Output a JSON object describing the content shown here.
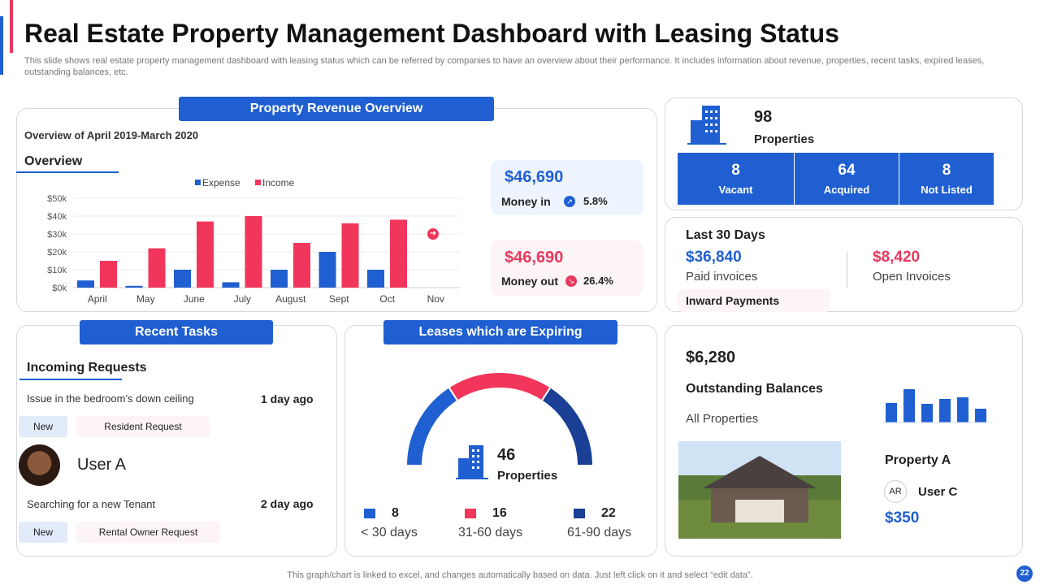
{
  "title": "Real Estate Property Management Dashboard with Leasing Status",
  "subtitle": "This slide shows real estate property management dashboard with leasing status which can be referred by companies to have an overview  about their performance. It includes information about revenue, properties, recent tasks, expired leases, outstanding balances, etc.",
  "revenue": {
    "header": "Property Revenue Overview",
    "period": "Overview of April 2019-March 2020",
    "overview": "Overview",
    "money_in": {
      "amount": "$46,690",
      "label": "Money in",
      "pct": "5.8%"
    },
    "money_out": {
      "amount": "$46,690",
      "label": "Money out",
      "pct": "26.4%"
    }
  },
  "chart_data": {
    "type": "bar",
    "categories": [
      "April",
      "May",
      "June",
      "July",
      "August",
      "Sept",
      "Oct",
      "Nov"
    ],
    "series": [
      {
        "name": "Expense",
        "color": "#1f5fd1",
        "values": [
          4,
          1,
          10,
          3,
          10,
          20,
          10,
          null
        ]
      },
      {
        "name": "Income",
        "color": "#f2355b",
        "values": [
          15,
          22,
          37,
          40,
          25,
          36,
          38,
          null
        ]
      }
    ],
    "yticks": [
      "$0k",
      "$10k",
      "$20k",
      "$30k",
      "$40k",
      "$50k"
    ],
    "ylim": [
      0,
      50
    ],
    "legend": "top-center",
    "unit": "$k"
  },
  "properties": {
    "count": "98",
    "label": "Properties",
    "stats": [
      {
        "value": "8",
        "label": "Vacant"
      },
      {
        "value": "64",
        "label": "Acquired"
      },
      {
        "value": "8",
        "label": "Not Listed"
      }
    ]
  },
  "last30": {
    "title": "Last 30 Days",
    "paid": {
      "amount": "$36,840",
      "label": "Paid invoices"
    },
    "open": {
      "amount": "$8,420",
      "label": "Open Invoices"
    },
    "inward": "Inward Payments"
  },
  "tasks": {
    "header": "Recent Tasks",
    "sub": "Incoming Requests",
    "items": [
      {
        "text": "Issue in the bedroom’s  down ceiling",
        "time": "1 day ago",
        "status": "New",
        "type": "Resident Request"
      },
      {
        "text": "Searching for a new Tenant",
        "time": "2 day ago",
        "status": "New",
        "type": "Rental Owner Request"
      }
    ],
    "user": "User A"
  },
  "leases": {
    "header": "Leases which are Expiring",
    "total": "46",
    "label": "Properties",
    "groups": [
      {
        "value": "8",
        "label": "< 30 days",
        "color": "#1f5fd1"
      },
      {
        "value": "16",
        "label": "31-60 days",
        "color": "#f2355b"
      },
      {
        "value": "22",
        "label": "61-90 days",
        "color": "#1a3f95"
      }
    ]
  },
  "balances": {
    "amount": "$6,280",
    "label": "Outstanding Balances",
    "scope": "All Properties",
    "property": "Property A",
    "user_initials": "AR",
    "user": "User C",
    "user_amount": "$350",
    "mini_bars": [
      24,
      41,
      23,
      29,
      31,
      17
    ]
  },
  "footer": "This graph/chart is linked to excel,  and changes automatically based on data. Just left click on it and select “edit data”.",
  "page": "22"
}
